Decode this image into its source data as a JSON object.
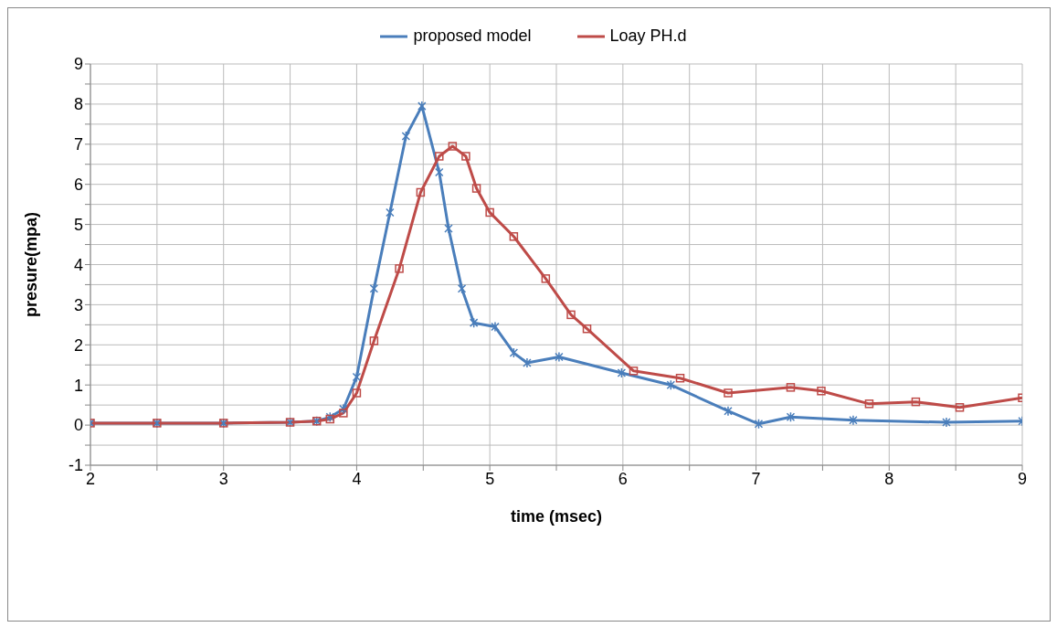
{
  "chart_data": {
    "type": "line",
    "xlabel": "time (msec)",
    "ylabel": "presure(mpa)",
    "legend": "top",
    "grid": true,
    "xlim": [
      2,
      9
    ],
    "xticks": [
      2,
      {
        "value": 2.5,
        "label": null
      },
      3,
      {
        "value": 3.5,
        "label": null
      },
      4,
      {
        "value": 4.5,
        "label": null
      },
      5,
      {
        "value": 5.5,
        "label": null
      },
      6,
      {
        "value": 6.5,
        "label": null
      },
      7,
      {
        "value": 7.5,
        "label": null
      },
      8,
      {
        "value": 8.5,
        "label": null
      },
      9
    ],
    "ylim": [
      -1,
      9
    ],
    "yticks": [
      -1,
      {
        "value": -0.5,
        "label": null
      },
      0,
      {
        "value": 0.5,
        "label": null
      },
      1,
      {
        "value": 1.5,
        "label": null
      },
      2,
      {
        "value": 2.5,
        "label": null
      },
      3,
      {
        "value": 3.5,
        "label": null
      },
      4,
      {
        "value": 4.5,
        "label": null
      },
      5,
      {
        "value": 5.5,
        "label": null
      },
      6,
      {
        "value": 6.5,
        "label": null
      },
      7,
      {
        "value": 7.5,
        "label": null
      },
      8,
      {
        "value": 8.5,
        "label": null
      },
      9
    ],
    "series": [
      {
        "name": "proposed model",
        "color": "#4a7ebb",
        "marker": "cross",
        "x": [
          2,
          2.5,
          3,
          3.5,
          3.7,
          3.8,
          3.9,
          4,
          4.13,
          4.25,
          4.37,
          4.49,
          4.62,
          4.69,
          4.79,
          4.88,
          5.04,
          5.18,
          5.28,
          5.52,
          5.99,
          6.36,
          6.79,
          7.02,
          7.26,
          7.73,
          8.43,
          9
        ],
        "values": [
          0.05,
          0.05,
          0.05,
          0.07,
          0.1,
          0.2,
          0.4,
          1.2,
          3.4,
          5.3,
          7.2,
          7.95,
          6.3,
          4.9,
          3.4,
          2.55,
          2.45,
          1.8,
          1.55,
          1.7,
          1.3,
          1.0,
          0.35,
          0.03,
          0.2,
          0.12,
          0.07,
          0.1
        ]
      },
      {
        "name": "Loay PH.d",
        "color": "#be4b48",
        "marker": "square",
        "x": [
          2,
          2.5,
          3,
          3.5,
          3.7,
          3.8,
          3.9,
          4,
          4.13,
          4.32,
          4.48,
          4.62,
          4.72,
          4.82,
          4.9,
          5.0,
          5.18,
          5.42,
          5.61,
          5.73,
          6.08,
          6.43,
          6.79,
          7.26,
          7.49,
          7.85,
          8.2,
          8.53,
          9
        ],
        "values": [
          0.05,
          0.05,
          0.05,
          0.07,
          0.1,
          0.15,
          0.3,
          0.8,
          2.1,
          3.9,
          5.8,
          6.7,
          6.95,
          6.7,
          5.9,
          5.3,
          4.7,
          3.65,
          2.75,
          2.4,
          1.35,
          1.17,
          0.8,
          0.94,
          0.85,
          0.53,
          0.58,
          0.44,
          0.68
        ]
      }
    ]
  }
}
